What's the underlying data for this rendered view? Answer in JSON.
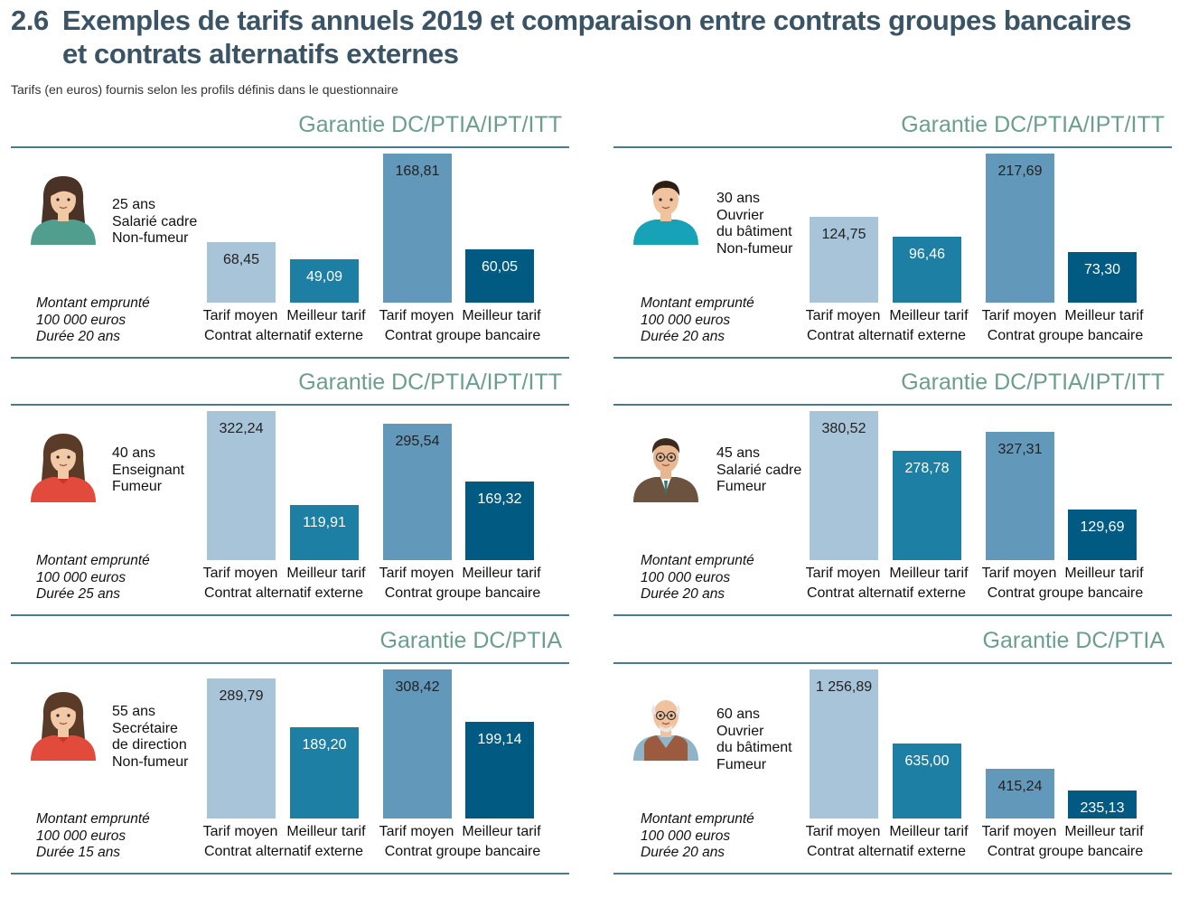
{
  "header": {
    "number": "2.6",
    "title_line1": "Exemples de tarifs annuels 2019 et comparaison entre contrats groupes bancaires",
    "title_line2": "et contrats alternatifs externes",
    "subtitle": "Tarifs (en euros) fournis selon les profils définis dans le questionnaire"
  },
  "legend": {
    "bar_labels": [
      "Tarif moyen",
      "Meilleur tarif",
      "Tarif moyen",
      "Meilleur tarif"
    ],
    "group_labels": [
      "Contrat alternatif externe",
      "Contrat groupe bancaire"
    ]
  },
  "colors": {
    "alt_moyen": "#a8c4d8",
    "alt_meilleur": "#1d7fa3",
    "grp_moyen": "#6298b9",
    "grp_meilleur": "#005a82",
    "guarantee_title": "#6b9e8e",
    "rule": "#4a7a8c"
  },
  "panels": [
    {
      "guarantee": "Garantie DC/PTIA/IPT/ITT",
      "avatar": "woman-green-top-icon",
      "profile": [
        "25 ans",
        "Salarié cadre",
        "Non-fumeur"
      ],
      "loan": [
        "Montant emprunté",
        "100 000 euros",
        "Durée 20 ans"
      ]
    },
    {
      "guarantee": "Garantie DC/PTIA/IPT/ITT",
      "avatar": "man-teal-shirt-icon",
      "profile": [
        "30 ans",
        "Ouvrier",
        "du bâtiment",
        "Non-fumeur"
      ],
      "loan": [
        "Montant emprunté",
        "100 000 euros",
        "Durée 20 ans"
      ]
    },
    {
      "guarantee": "Garantie DC/PTIA/IPT/ITT",
      "avatar": "woman-red-top-icon",
      "profile": [
        "40 ans",
        "Enseignant",
        "Fumeur"
      ],
      "loan": [
        "Montant emprunté",
        "100 000 euros",
        "Durée 25 ans"
      ]
    },
    {
      "guarantee": "Garantie DC/PTIA/IPT/ITT",
      "avatar": "man-suit-glasses-icon",
      "profile": [
        "45 ans",
        "Salarié cadre",
        "Fumeur"
      ],
      "loan": [
        "Montant emprunté",
        "100 000 euros",
        "Durée 20 ans"
      ]
    },
    {
      "guarantee": "Garantie DC/PTIA",
      "avatar": "woman-red-top-icon",
      "profile": [
        "55 ans",
        "Secrétaire",
        "de direction",
        "Non-fumeur"
      ],
      "loan": [
        "Montant emprunté",
        "100 000 euros",
        "Durée 15 ans"
      ]
    },
    {
      "guarantee": "Garantie DC/PTIA",
      "avatar": "elderly-man-vest-icon",
      "profile": [
        "60 ans",
        "Ouvrier",
        "du bâtiment",
        "Fumeur"
      ],
      "loan": [
        "Montant emprunté",
        "100 000 euros",
        "Durée 20 ans"
      ]
    }
  ],
  "chart_data": [
    {
      "type": "bar",
      "categories": [
        "Tarif moyen",
        "Meilleur tarif",
        "Tarif moyen",
        "Meilleur tarif"
      ],
      "groups": [
        "Contrat alternatif externe",
        "Contrat groupe bancaire"
      ],
      "values": [
        68.45,
        49.09,
        168.81,
        60.05
      ],
      "labels": [
        "68,45",
        "49,09",
        "168,81",
        "60,05"
      ]
    },
    {
      "type": "bar",
      "categories": [
        "Tarif moyen",
        "Meilleur tarif",
        "Tarif moyen",
        "Meilleur tarif"
      ],
      "groups": [
        "Contrat alternatif externe",
        "Contrat groupe bancaire"
      ],
      "values": [
        124.75,
        96.46,
        217.69,
        73.3
      ],
      "labels": [
        "124,75",
        "96,46",
        "217,69",
        "73,30"
      ]
    },
    {
      "type": "bar",
      "categories": [
        "Tarif moyen",
        "Meilleur tarif",
        "Tarif moyen",
        "Meilleur tarif"
      ],
      "groups": [
        "Contrat alternatif externe",
        "Contrat groupe bancaire"
      ],
      "values": [
        322.24,
        119.91,
        295.54,
        169.32
      ],
      "labels": [
        "322,24",
        "119,91",
        "295,54",
        "169,32"
      ]
    },
    {
      "type": "bar",
      "categories": [
        "Tarif moyen",
        "Meilleur tarif",
        "Tarif moyen",
        "Meilleur tarif"
      ],
      "groups": [
        "Contrat alternatif externe",
        "Contrat groupe bancaire"
      ],
      "values": [
        380.52,
        278.78,
        327.31,
        129.69
      ],
      "labels": [
        "380,52",
        "278,78",
        "327,31",
        "129,69"
      ]
    },
    {
      "type": "bar",
      "categories": [
        "Tarif moyen",
        "Meilleur tarif",
        "Tarif moyen",
        "Meilleur tarif"
      ],
      "groups": [
        "Contrat alternatif externe",
        "Contrat groupe bancaire"
      ],
      "values": [
        289.79,
        189.2,
        308.42,
        199.14
      ],
      "labels": [
        "289,79",
        "189,20",
        "308,42",
        "199,14"
      ]
    },
    {
      "type": "bar",
      "categories": [
        "Tarif moyen",
        "Meilleur tarif",
        "Tarif moyen",
        "Meilleur tarif"
      ],
      "groups": [
        "Contrat alternatif externe",
        "Contrat groupe bancaire"
      ],
      "values": [
        1256.89,
        635.0,
        415.24,
        235.13
      ],
      "labels": [
        "1 256,89",
        "635,00",
        "415,24",
        "235,13"
      ]
    }
  ]
}
